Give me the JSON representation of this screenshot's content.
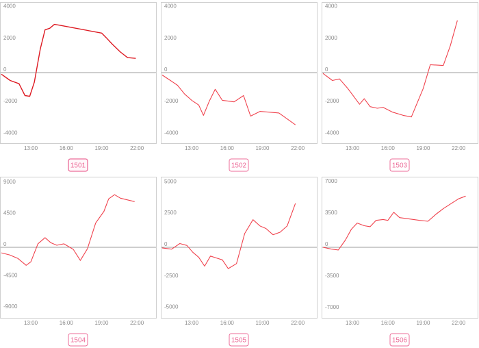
{
  "colors": {
    "line": "#f0424d",
    "line_bold": "#dd1a22",
    "axis": "#9e9e9e",
    "frame": "#cfcfcf",
    "tick_text": "#8a8a8a",
    "tab_text": "#ec6d99",
    "tab_border": "#ec6d99",
    "tab_bg": "#fff7fa"
  },
  "chart_data": [
    {
      "type": "line",
      "label": "1501",
      "selected": true,
      "x_ticks": [
        "13:00",
        "16:00",
        "19:00",
        "22:00"
      ],
      "y_ticks": [
        4000,
        2000,
        0,
        -2000,
        -4000
      ],
      "ylim": [
        -4200,
        4200
      ],
      "xlim": [
        10.5,
        23.5
      ],
      "x": [
        10.5,
        11.25,
        12.0,
        12.5,
        12.9,
        13.3,
        13.8,
        14.2,
        14.6,
        15.0,
        15.4,
        19.0,
        19.4,
        19.9,
        20.6,
        21.2,
        21.9
      ],
      "values": [
        -100,
        -500,
        -700,
        -1450,
        -1500,
        -600,
        1500,
        2700,
        2800,
        3050,
        3000,
        2500,
        2200,
        1800,
        1300,
        950,
        900
      ]
    },
    {
      "type": "line",
      "label": "1502",
      "selected": false,
      "x_ticks": [
        "13:00",
        "16:00",
        "19:00",
        "22:00"
      ],
      "y_ticks": [
        4000,
        2000,
        0,
        -2000,
        -4000
      ],
      "ylim": [
        -4200,
        4200
      ],
      "xlim": [
        10.5,
        23.5
      ],
      "x": [
        10.5,
        11.2,
        11.8,
        12.4,
        13.0,
        13.6,
        14.0,
        14.5,
        15.0,
        15.6,
        16.1,
        16.6,
        17.4,
        18.0,
        18.8,
        20.4,
        21.8
      ],
      "values": [
        -150,
        -500,
        -800,
        -1350,
        -1750,
        -2050,
        -2700,
        -1800,
        -1050,
        -1750,
        -1800,
        -1850,
        -1450,
        -2750,
        -2450,
        -2550,
        -3300
      ]
    },
    {
      "type": "line",
      "label": "1503",
      "selected": false,
      "x_ticks": [
        "13:00",
        "16:00",
        "19:00",
        "22:00"
      ],
      "y_ticks": [
        4000,
        2000,
        0,
        -2000,
        -4000
      ],
      "ylim": [
        -4200,
        4200
      ],
      "xlim": [
        10.5,
        23.5
      ],
      "x": [
        10.5,
        11.3,
        11.9,
        12.6,
        13.1,
        13.6,
        14.0,
        14.5,
        15.1,
        15.6,
        16.4,
        17.3,
        18.0,
        19.0,
        19.6,
        20.7,
        21.3,
        21.9
      ],
      "values": [
        -50,
        -500,
        -400,
        -1000,
        -1500,
        -2000,
        -1650,
        -2150,
        -2250,
        -2200,
        -2500,
        -2700,
        -2800,
        -1000,
        500,
        450,
        1700,
        3300
      ]
    },
    {
      "type": "line",
      "label": "1504",
      "selected": false,
      "x_ticks": [
        "13:00",
        "16:00",
        "19:00",
        "22:00"
      ],
      "y_ticks": [
        9000,
        4500,
        0,
        -4500,
        -9000
      ],
      "ylim": [
        -9600,
        9600
      ],
      "xlim": [
        10.5,
        23.5
      ],
      "x": [
        10.5,
        11.2,
        11.9,
        12.6,
        13.0,
        13.6,
        14.2,
        14.7,
        15.2,
        15.8,
        16.6,
        17.2,
        17.8,
        18.5,
        19.2,
        19.6,
        20.1,
        20.6,
        21.8
      ],
      "values": [
        -800,
        -1100,
        -1600,
        -2600,
        -2100,
        500,
        1400,
        650,
        300,
        500,
        -300,
        -1900,
        -200,
        3500,
        5200,
        7000,
        7600,
        7100,
        6600
      ]
    },
    {
      "type": "line",
      "label": "1505",
      "selected": false,
      "x_ticks": [
        "13:00",
        "16:00",
        "19:00",
        "22:00"
      ],
      "y_ticks": [
        5000,
        2500,
        0,
        -2500,
        -5000
      ],
      "ylim": [
        -5300,
        5300
      ],
      "xlim": [
        10.5,
        23.5
      ],
      "x": [
        10.5,
        11.3,
        12.0,
        12.6,
        13.1,
        13.6,
        14.1,
        14.6,
        15.1,
        15.6,
        16.1,
        16.8,
        17.5,
        18.2,
        18.8,
        19.3,
        19.9,
        20.5,
        21.1,
        21.8
      ],
      "values": [
        -50,
        -150,
        300,
        150,
        -400,
        -800,
        -1500,
        -700,
        -850,
        -1000,
        -1700,
        -1300,
        1100,
        2200,
        1700,
        1500,
        1000,
        1200,
        1700,
        3500
      ]
    },
    {
      "type": "line",
      "label": "1506",
      "selected": false,
      "x_ticks": [
        "13:00",
        "16:00",
        "19:00",
        "22:00"
      ],
      "y_ticks": [
        7000,
        3500,
        0,
        -3500,
        -7000
      ],
      "ylim": [
        -7400,
        7400
      ],
      "xlim": [
        10.5,
        23.5
      ],
      "x": [
        10.5,
        11.2,
        11.8,
        12.4,
        12.9,
        13.4,
        14.0,
        14.5,
        15.0,
        15.6,
        16.0,
        16.5,
        17.0,
        17.6,
        18.7,
        19.4,
        20.1,
        20.7,
        21.4,
        22.0,
        22.6
      ],
      "values": [
        0,
        -200,
        -300,
        800,
        2000,
        2700,
        2400,
        2300,
        3000,
        3100,
        3000,
        3900,
        3300,
        3200,
        3000,
        2900,
        3700,
        4300,
        4900,
        5400,
        5700
      ]
    }
  ]
}
